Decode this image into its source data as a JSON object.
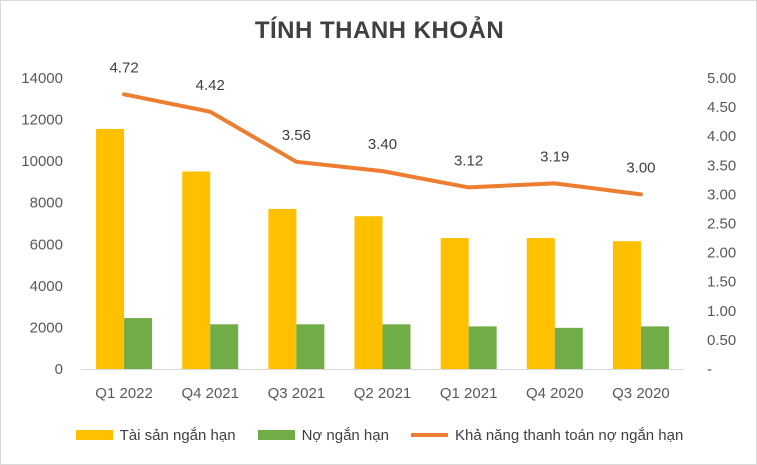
{
  "chart_data": {
    "type": "bar",
    "title": "TÍNH THANH KHOẢN",
    "categories": [
      "Q1 2022",
      "Q4 2021",
      "Q3 2021",
      "Q2 2021",
      "Q1 2021",
      "Q4 2020",
      "Q3 2020"
    ],
    "series": [
      {
        "name": "Tài sản ngắn hạn",
        "type": "bar",
        "axis": "left",
        "color": "#FFC000",
        "values": [
          11550,
          9500,
          7700,
          7350,
          6300,
          6300,
          6150
        ]
      },
      {
        "name": "Nợ ngắn hạn",
        "type": "bar",
        "axis": "left",
        "color": "#70AD47",
        "values": [
          2450,
          2150,
          2150,
          2150,
          2050,
          1980,
          2050
        ]
      },
      {
        "name": "Khả năng thanh toán nợ ngắn hạn",
        "type": "line",
        "axis": "right",
        "color": "#ED7D31",
        "values": [
          4.72,
          4.42,
          3.56,
          3.4,
          3.12,
          3.19,
          3.0
        ],
        "labels": [
          "4.72",
          "4.42",
          "3.56",
          "3.40",
          "3.12",
          "3.19",
          "3.00"
        ]
      }
    ],
    "y_left": {
      "min": 0,
      "max": 14000,
      "ticks": [
        "0",
        "2000",
        "4000",
        "6000",
        "8000",
        "10000",
        "12000",
        "14000"
      ]
    },
    "y_right": {
      "min": 0,
      "max": 5,
      "ticks": [
        "-",
        "0.50",
        "1.00",
        "1.50",
        "2.00",
        "2.50",
        "3.00",
        "3.50",
        "4.00",
        "4.50",
        "5.00"
      ]
    },
    "grid": false,
    "legend_position": "bottom"
  }
}
